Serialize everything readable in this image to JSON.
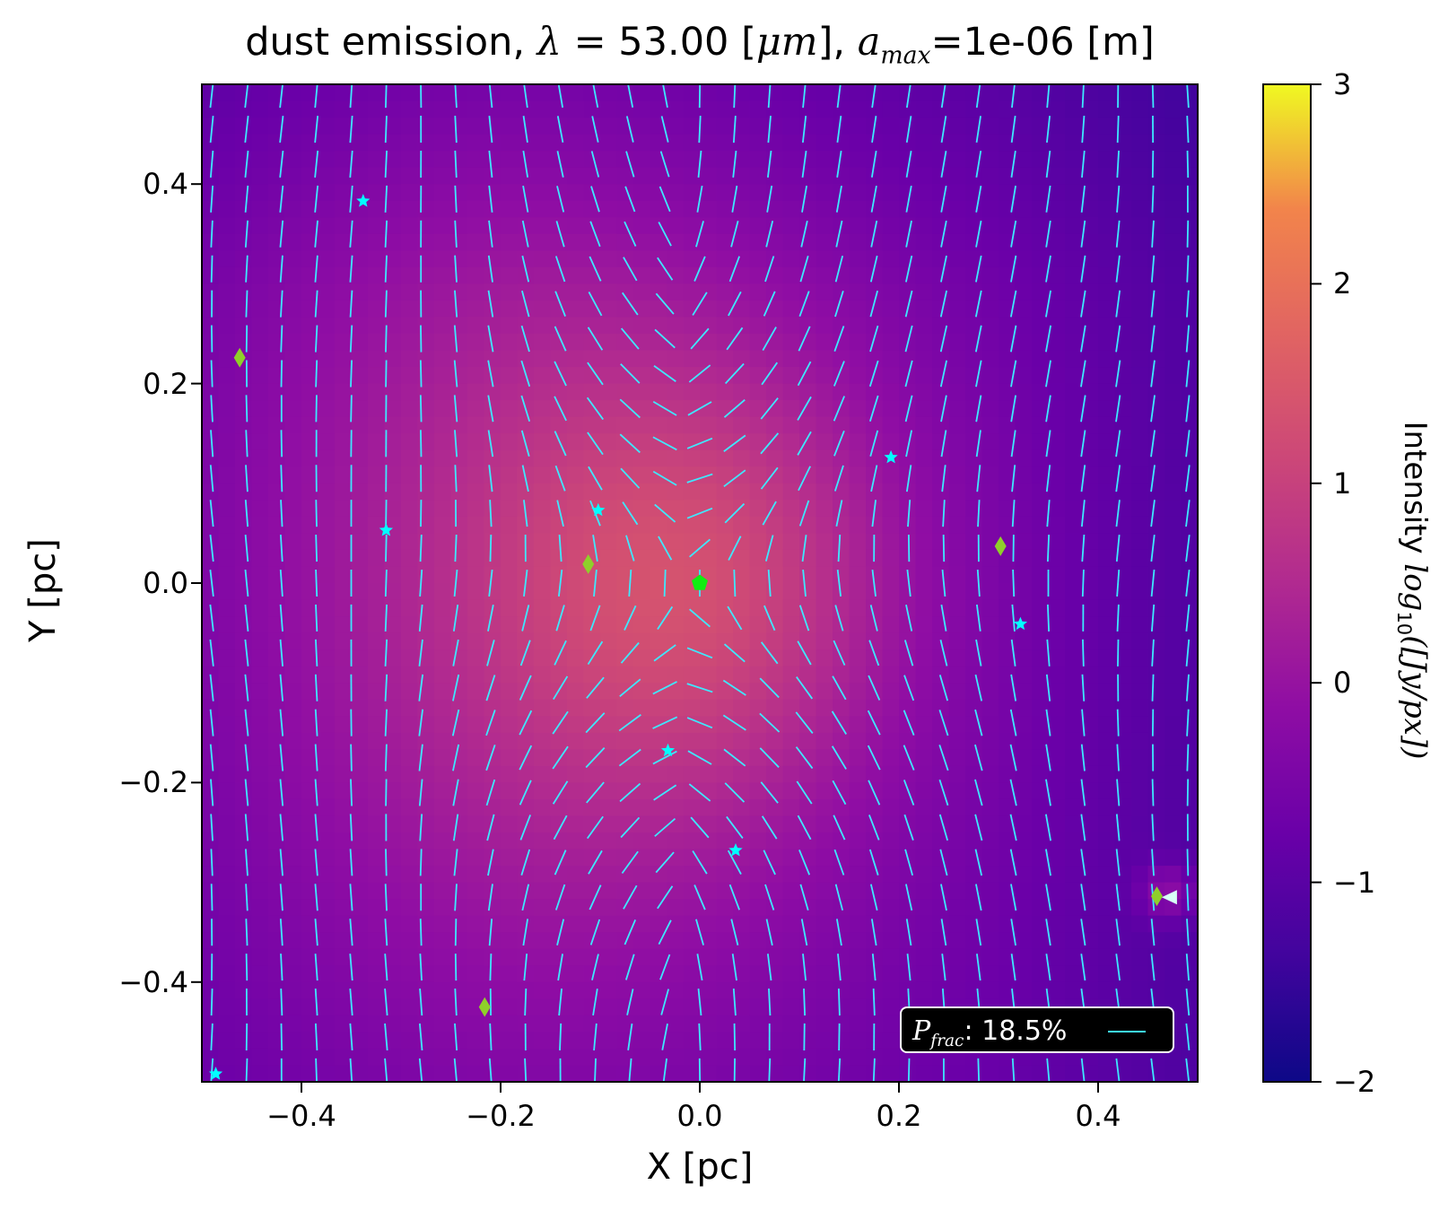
{
  "chart_data": {
    "type": "heatmap",
    "title_parts": {
      "prefix": "dust emission,",
      "lambda_symbol": "λ",
      "lambda_eq": "= 53.00 [",
      "lambda_unit": "μm",
      "suffix": "],",
      "a_symbol": "a",
      "a_sub": "max",
      "a_value": "=1e-06 [m]"
    },
    "xlabel": "X [pc]",
    "ylabel": "Y [pc]",
    "xlim": [
      -0.5,
      0.5
    ],
    "ylim": [
      -0.5,
      0.5
    ],
    "xticks": [
      -0.4,
      -0.2,
      0.0,
      0.2,
      0.4
    ],
    "xtick_labels": [
      "−0.4",
      "−0.2",
      "0.0",
      "0.2",
      "0.4"
    ],
    "yticks": [
      -0.4,
      -0.2,
      0.0,
      0.2,
      0.4
    ],
    "ytick_labels": [
      "−0.4",
      "−0.2",
      "0.0",
      "0.2",
      "0.4"
    ],
    "colormap": "plasma",
    "colorbar": {
      "range": [
        -2,
        3
      ],
      "ticks": [
        -2,
        -1,
        0,
        1,
        2,
        3
      ],
      "tick_labels": [
        "−2",
        "−1",
        "0",
        "1",
        "2",
        "3"
      ],
      "label_prefix": "Intensity ",
      "label_func": "log",
      "label_sub": "10",
      "label_arg": "([Jy/px])"
    },
    "intensity_model": {
      "background": -1.0,
      "components": [
        {
          "x": 0.0,
          "y": 0.0,
          "amp": 1.2,
          "sx": 0.14,
          "sy": 0.16
        },
        {
          "x": -0.1,
          "y": -0.02,
          "amp": 1.0,
          "sx": 0.3,
          "sy": 0.42
        },
        {
          "x": -0.25,
          "y": 0.05,
          "amp": 0.5,
          "sx": 0.18,
          "sy": 0.35
        },
        {
          "x": 0.47,
          "y": -0.31,
          "amp": 0.9,
          "sx": 0.02,
          "sy": 0.02
        }
      ]
    },
    "polarization_field": {
      "grid_x": [
        -0.49,
        -0.455,
        -0.42,
        -0.385,
        -0.35,
        -0.315,
        -0.28,
        -0.245,
        -0.21,
        -0.175,
        -0.14,
        -0.105,
        -0.07,
        -0.035,
        0.0,
        0.035,
        0.07,
        0.105,
        0.14,
        0.175,
        0.21,
        0.245,
        0.28,
        0.315,
        0.35,
        0.385,
        0.42,
        0.455,
        0.49
      ],
      "grid_y": [
        0.49,
        0.455,
        0.42,
        0.385,
        0.35,
        0.315,
        0.28,
        0.245,
        0.21,
        0.175,
        0.14,
        0.105,
        0.07,
        0.035,
        0.0,
        -0.035,
        -0.07,
        -0.105,
        -0.14,
        -0.175,
        -0.21,
        -0.245,
        -0.28,
        -0.315,
        -0.35,
        -0.385,
        -0.42,
        -0.455,
        -0.49
      ],
      "segment_length": 0.027,
      "color": "#3ee8ff",
      "description": "hourglass-shaped field pinched toward the central source"
    },
    "sources": [
      {
        "type": "pentagon",
        "x": 0.0,
        "y": 0.0,
        "color": "#11ee11"
      },
      {
        "type": "star",
        "x": -0.338,
        "y": 0.383,
        "color": "#00ffff"
      },
      {
        "type": "star",
        "x": -0.315,
        "y": 0.053,
        "color": "#00ffff"
      },
      {
        "type": "star",
        "x": -0.102,
        "y": 0.073,
        "color": "#00ffff"
      },
      {
        "type": "star",
        "x": 0.192,
        "y": 0.126,
        "color": "#00ffff"
      },
      {
        "type": "star",
        "x": 0.322,
        "y": -0.041,
        "color": "#00ffff"
      },
      {
        "type": "star",
        "x": -0.032,
        "y": -0.168,
        "color": "#00ffff"
      },
      {
        "type": "star",
        "x": 0.036,
        "y": -0.268,
        "color": "#00ffff"
      },
      {
        "type": "star",
        "x": -0.486,
        "y": -0.492,
        "color": "#00ffff"
      },
      {
        "type": "diamond",
        "x": -0.462,
        "y": 0.226,
        "color": "#8fcf2a"
      },
      {
        "type": "diamond",
        "x": -0.112,
        "y": 0.019,
        "color": "#8fcf2a"
      },
      {
        "type": "diamond",
        "x": 0.302,
        "y": 0.037,
        "color": "#8fcf2a"
      },
      {
        "type": "diamond",
        "x": -0.216,
        "y": -0.425,
        "color": "#8fcf2a"
      },
      {
        "type": "diamond",
        "x": 0.459,
        "y": -0.314,
        "color": "#8fcf2a"
      },
      {
        "type": "triangle",
        "x": 0.472,
        "y": -0.315,
        "color": "#d8fff6"
      }
    ],
    "legend": {
      "symbol": "P",
      "sub": "frac",
      "text": ":  18.5%",
      "placement": "lower-right"
    }
  }
}
